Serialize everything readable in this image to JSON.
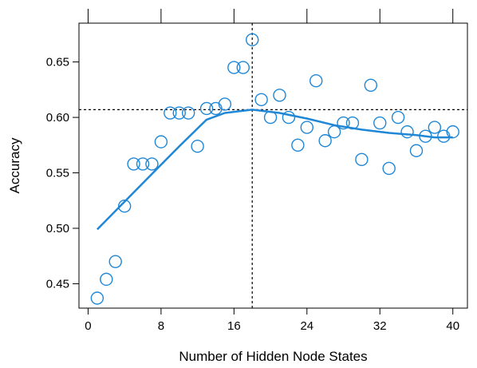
{
  "chart_data": {
    "type": "scatter",
    "xlabel": "Number of Hidden Node States",
    "ylabel": "Accuracy",
    "xlim": [
      -1,
      41.6
    ],
    "ylim": [
      0.428,
      0.685
    ],
    "xticks": [
      0,
      8,
      16,
      24,
      32,
      40
    ],
    "yticks": [
      0.45,
      0.5,
      0.55,
      0.6,
      0.65
    ],
    "ytick_labels": [
      "0.45",
      "0.50",
      "0.55",
      "0.60",
      "0.65"
    ],
    "top_ticks": [
      0,
      8,
      16,
      24,
      32,
      40
    ],
    "reference_lines": {
      "x": 18,
      "y": 0.607
    },
    "grid": false,
    "colors": {
      "points": "#1f87d6",
      "smooth": "#1f87d6",
      "ref": "#000000"
    },
    "points": [
      {
        "x": 1,
        "y": 0.437
      },
      {
        "x": 2,
        "y": 0.454
      },
      {
        "x": 3,
        "y": 0.47
      },
      {
        "x": 4,
        "y": 0.52
      },
      {
        "x": 5,
        "y": 0.558
      },
      {
        "x": 6,
        "y": 0.558
      },
      {
        "x": 7,
        "y": 0.558
      },
      {
        "x": 8,
        "y": 0.578
      },
      {
        "x": 9,
        "y": 0.604
      },
      {
        "x": 10,
        "y": 0.604
      },
      {
        "x": 11,
        "y": 0.604
      },
      {
        "x": 12,
        "y": 0.574
      },
      {
        "x": 13,
        "y": 0.608
      },
      {
        "x": 14,
        "y": 0.608
      },
      {
        "x": 15,
        "y": 0.612
      },
      {
        "x": 16,
        "y": 0.645
      },
      {
        "x": 17,
        "y": 0.645
      },
      {
        "x": 18,
        "y": 0.67
      },
      {
        "x": 19,
        "y": 0.616
      },
      {
        "x": 20,
        "y": 0.6
      },
      {
        "x": 21,
        "y": 0.62
      },
      {
        "x": 22,
        "y": 0.6
      },
      {
        "x": 23,
        "y": 0.575
      },
      {
        "x": 24,
        "y": 0.591
      },
      {
        "x": 25,
        "y": 0.633
      },
      {
        "x": 26,
        "y": 0.579
      },
      {
        "x": 27,
        "y": 0.587
      },
      {
        "x": 28,
        "y": 0.595
      },
      {
        "x": 29,
        "y": 0.595
      },
      {
        "x": 30,
        "y": 0.562
      },
      {
        "x": 31,
        "y": 0.629
      },
      {
        "x": 32,
        "y": 0.595
      },
      {
        "x": 33,
        "y": 0.554
      },
      {
        "x": 34,
        "y": 0.6
      },
      {
        "x": 35,
        "y": 0.587
      },
      {
        "x": 36,
        "y": 0.57
      },
      {
        "x": 37,
        "y": 0.583
      },
      {
        "x": 38,
        "y": 0.591
      },
      {
        "x": 39,
        "y": 0.583
      },
      {
        "x": 40,
        "y": 0.587
      }
    ],
    "smooth_line": [
      {
        "x": 1,
        "y": 0.499
      },
      {
        "x": 4,
        "y": 0.524
      },
      {
        "x": 7,
        "y": 0.549
      },
      {
        "x": 10,
        "y": 0.574
      },
      {
        "x": 13,
        "y": 0.598
      },
      {
        "x": 15,
        "y": 0.604
      },
      {
        "x": 18,
        "y": 0.607
      },
      {
        "x": 21,
        "y": 0.604
      },
      {
        "x": 24,
        "y": 0.599
      },
      {
        "x": 27,
        "y": 0.593
      },
      {
        "x": 30,
        "y": 0.589
      },
      {
        "x": 33,
        "y": 0.586
      },
      {
        "x": 36,
        "y": 0.584
      },
      {
        "x": 38,
        "y": 0.582
      },
      {
        "x": 40,
        "y": 0.582
      }
    ]
  }
}
